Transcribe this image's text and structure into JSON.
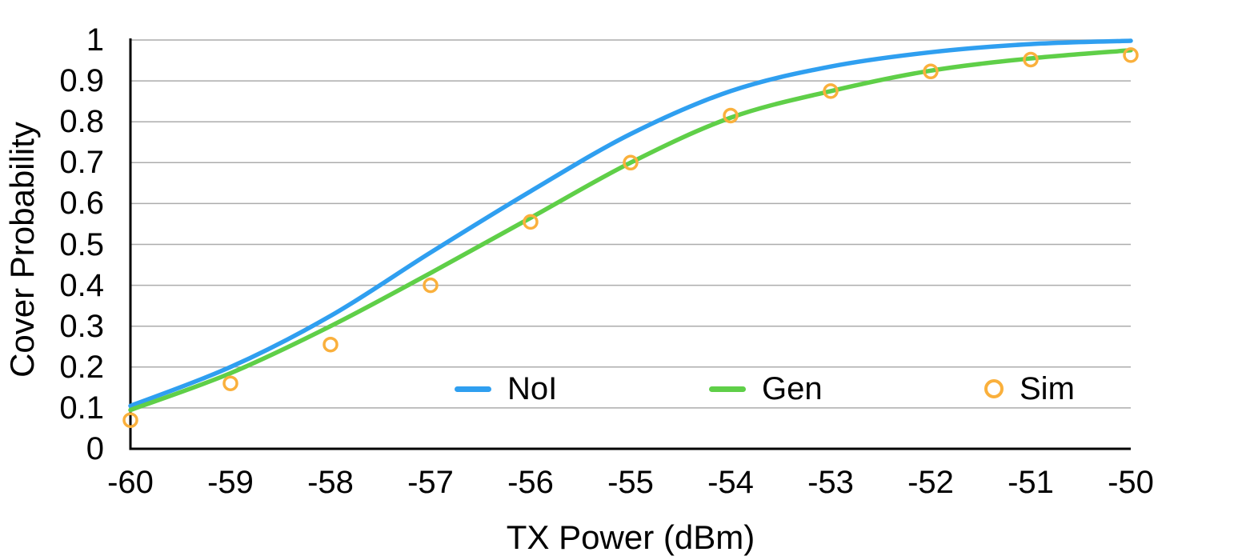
{
  "figure": {
    "background": "#FFFFFF",
    "y_axis_title": "Cover Probability",
    "x_axis_title": "TX Power (dBm)"
  },
  "legend": {
    "position": "inside-bottom-center",
    "items": [
      {
        "label": "NoI",
        "marker": "line",
        "color": "#2F9FF0"
      },
      {
        "label": "Gen",
        "marker": "line",
        "color": "#5FCF48"
      },
      {
        "label": "Sim",
        "marker": "circle",
        "color": "#FAB03C"
      }
    ]
  },
  "chart_data": {
    "type": "line",
    "title": "",
    "xlabel": "TX Power (dBm)",
    "ylabel": "Cover Probability",
    "xlim": [
      -60,
      -50
    ],
    "ylim": [
      0,
      1
    ],
    "grid": "horizontal-only",
    "gridline_color": "#ACACAC",
    "axis_color": "#000000",
    "legend_position": "inside-bottom-center",
    "x": [
      -60,
      -59,
      -58,
      -57,
      -56,
      -55,
      -54,
      -53,
      -52,
      -51,
      -50
    ],
    "x_tick_labels": [
      "-60",
      "-59",
      "-58",
      "-57",
      "-56",
      "-55",
      "-54",
      "-53",
      "-52",
      "-51",
      "-50"
    ],
    "y_ticks": [
      0,
      0.1,
      0.2,
      0.3,
      0.4,
      0.5,
      0.6,
      0.7,
      0.8,
      0.9,
      1
    ],
    "y_tick_labels": [
      "0",
      "0.1",
      "0.2",
      "0.3",
      "0.4",
      "0.5",
      "0.6",
      "0.7",
      "0.8",
      "0.9",
      "1"
    ],
    "series": [
      {
        "name": "NoI",
        "style": "line",
        "color": "#2F9FF0",
        "values": [
          0.105,
          0.2,
          0.325,
          0.48,
          0.63,
          0.77,
          0.875,
          0.935,
          0.97,
          0.99,
          0.998
        ]
      },
      {
        "name": "Gen",
        "style": "line",
        "color": "#5FCF48",
        "values": [
          0.095,
          0.185,
          0.3,
          0.43,
          0.565,
          0.7,
          0.81,
          0.875,
          0.925,
          0.955,
          0.975
        ]
      },
      {
        "name": "Sim",
        "style": "scatter-open-circle",
        "color": "#FAB03C",
        "values": [
          0.07,
          0.16,
          0.255,
          0.4,
          0.555,
          0.7,
          0.815,
          0.875,
          0.923,
          0.952,
          0.963
        ]
      }
    ]
  }
}
